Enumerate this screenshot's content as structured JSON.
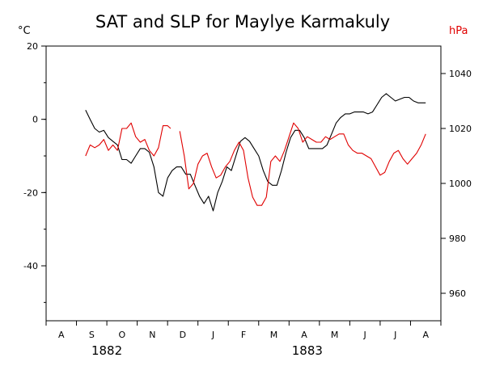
{
  "chart_data": {
    "type": "line",
    "title": "SAT and SLP for Maylye Karmakuly",
    "left_unit": "°C",
    "right_unit": "hPa",
    "left_ylim": [
      -55,
      20
    ],
    "right_ylim": [
      950,
      1050
    ],
    "left_ticks": [
      20,
      0,
      -20,
      -40
    ],
    "right_ticks": [
      1040,
      1020,
      1000,
      980,
      960
    ],
    "x_range": [
      0,
      13
    ],
    "months": [
      "A",
      "S",
      "O",
      "N",
      "D",
      "J",
      "F",
      "M",
      "A",
      "M",
      "J",
      "J",
      "A"
    ],
    "years": [
      {
        "label": "1882",
        "at": 2.0
      },
      {
        "label": "1883",
        "at": 8.6
      }
    ],
    "grid": false,
    "colors": {
      "sat": "#000000",
      "slp": "#e00000"
    },
    "series": [
      {
        "axis": "left",
        "color": "#000000",
        "segments": [
          {
            "x": [
              1.3,
              1.45,
              1.6,
              1.75,
              1.9,
              2.05,
              2.2,
              2.35,
              2.5,
              2.65,
              2.8,
              2.95,
              3.1,
              3.25,
              3.4,
              3.55,
              3.7,
              3.85,
              4.0,
              4.15,
              4.3,
              4.45,
              4.6,
              4.75,
              4.9,
              5.05,
              5.2,
              5.35,
              5.5,
              5.65,
              5.8,
              5.95,
              6.1,
              6.25,
              6.4,
              6.55,
              6.7,
              6.85,
              7.0,
              7.15,
              7.3,
              7.45,
              7.6,
              7.75,
              7.9,
              8.05,
              8.2,
              8.35,
              8.5,
              8.65,
              8.8,
              8.95,
              9.1,
              9.25,
              9.4,
              9.55,
              9.7,
              9.85,
              10.0,
              10.15,
              10.3,
              10.45,
              10.6,
              10.75,
              10.9,
              11.05,
              11.2,
              11.35,
              11.5,
              11.65,
              11.8,
              11.95,
              12.1,
              12.25,
              12.4,
              12.5
            ],
            "y": [
              2.5,
              0,
              -2.5,
              -3.5,
              -3,
              -5,
              -6,
              -7,
              -11,
              -11,
              -12,
              -10,
              -8,
              -8,
              -9,
              -13,
              -20,
              -21,
              -16,
              -14,
              -13,
              -13,
              -15,
              -15,
              -18,
              -21,
              -23,
              -21,
              -25,
              -20,
              -17,
              -13,
              -14,
              -10,
              -6,
              -5,
              -6,
              -8,
              -10,
              -14,
              -17,
              -18,
              -18,
              -14,
              -9,
              -5,
              -3,
              -3,
              -5,
              -8,
              -8,
              -8,
              -8,
              -7,
              -4,
              -1,
              0.5,
              1.5,
              1.5,
              2,
              2,
              2,
              1.5,
              2,
              4,
              6,
              7,
              6,
              5,
              5.5,
              6,
              6,
              5,
              4.5,
              4.5,
              4.5
            ]
          }
        ]
      },
      {
        "axis": "right",
        "color": "#e00000",
        "segments": [
          {
            "x": [
              1.3,
              1.45,
              1.6,
              1.75,
              1.9,
              2.05,
              2.2,
              2.35,
              2.5,
              2.65,
              2.8,
              2.95,
              3.1,
              3.25,
              3.4,
              3.55,
              3.7,
              3.85,
              4.0,
              4.1
            ],
            "y": [
              1010,
              1014,
              1013,
              1014,
              1016,
              1012,
              1014,
              1012,
              1020,
              1020,
              1022,
              1017,
              1015,
              1016,
              1012,
              1010,
              1013,
              1021,
              1021,
              1020
            ]
          },
          {
            "x": [
              4.4,
              4.55,
              4.7,
              4.85,
              5.0,
              5.15,
              5.3,
              5.45,
              5.6,
              5.75,
              5.9,
              6.05,
              6.2,
              6.35,
              6.5,
              6.65,
              6.8,
              6.95,
              7.1,
              7.25,
              7.4,
              7.55,
              7.7,
              7.85,
              8.0,
              8.15,
              8.3,
              8.45,
              8.6,
              8.75,
              8.9,
              9.05,
              9.2,
              9.35,
              9.5,
              9.65,
              9.8,
              9.95,
              10.1,
              10.25,
              10.4,
              10.55,
              10.7,
              10.85,
              11.0,
              11.15,
              11.3,
              11.45,
              11.6,
              11.75,
              11.9,
              12.05,
              12.2,
              12.35,
              12.5
            ],
            "y": [
              1019,
              1010,
              998,
              1000,
              1007,
              1010,
              1011,
              1006,
              1002,
              1003,
              1006,
              1008,
              1012,
              1015,
              1012,
              1002,
              995,
              992,
              992,
              995,
              1008,
              1010,
              1008,
              1012,
              1017,
              1022,
              1020,
              1015,
              1017,
              1016,
              1015,
              1015,
              1017,
              1016,
              1017,
              1018,
              1018,
              1014,
              1012,
              1011,
              1011,
              1010,
              1009,
              1006,
              1003,
              1004,
              1008,
              1011,
              1012,
              1009,
              1007,
              1009,
              1011,
              1014,
              1018
            ]
          }
        ]
      }
    ]
  }
}
